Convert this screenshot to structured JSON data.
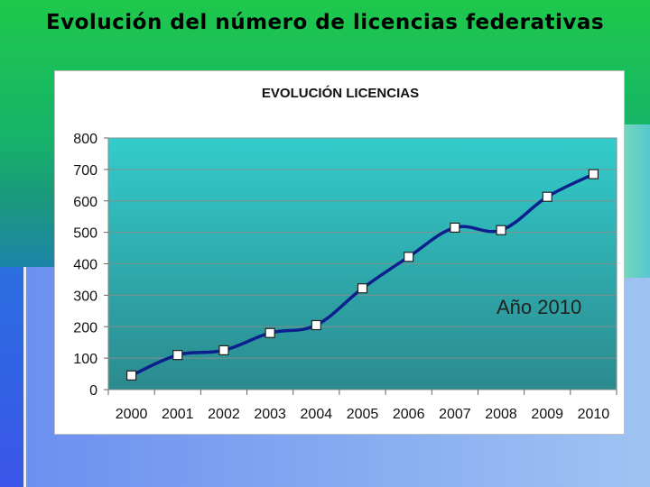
{
  "slide": {
    "title": "Evolución del número de licencias federativas",
    "overlay_text": "Año 2010"
  },
  "chart_data": {
    "type": "line",
    "title": "EVOLUCIÓN LICENCIAS",
    "xlabel": "",
    "ylabel": "",
    "categories": [
      "2000",
      "2001",
      "2002",
      "2003",
      "2004",
      "2005",
      "2006",
      "2007",
      "2008",
      "2009",
      "2010"
    ],
    "series": [
      {
        "values": [
          45,
          110,
          125,
          180,
          205,
          322,
          422,
          515,
          507,
          613,
          685
        ]
      }
    ],
    "ylim": [
      0,
      800
    ],
    "yticks": [
      0,
      100,
      200,
      300,
      400,
      500,
      600,
      700,
      800
    ],
    "grid": true,
    "legend": "none",
    "colors": {
      "line": "#0d1f8c",
      "marker_fill": "#ffffff",
      "marker_stroke": "#222222",
      "plot_top": "#33cccc",
      "plot_bottom": "#2b8a8e"
    }
  }
}
